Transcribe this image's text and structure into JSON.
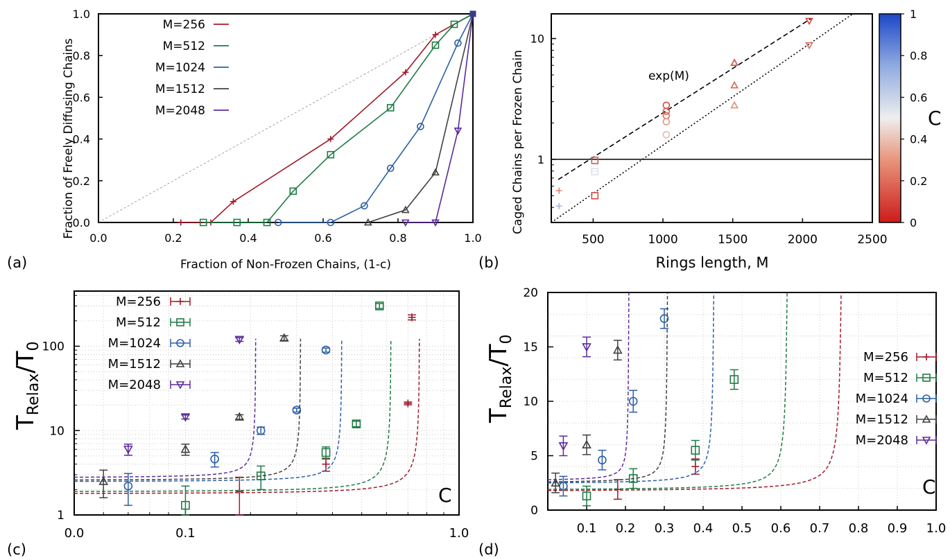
{
  "figure": {
    "panel_labels": [
      "(a)",
      "(b)",
      "(c)",
      "(d)"
    ]
  },
  "colors": {
    "M256": "#a3192a",
    "M512": "#1e7a45",
    "M1024": "#2b5fa6",
    "M1512": "#404040",
    "M2048": "#5b2a9a"
  },
  "chart_data": [
    {
      "id": "a",
      "type": "line",
      "xlabel": "Fraction of Non-Frozen Chains, (1-c)",
      "ylabel": "Fraction of Freely Diffusing Chains",
      "xlim": [
        0,
        1
      ],
      "ylim": [
        0,
        1
      ],
      "xticks": [
        "0.0",
        "0.2",
        "0.4",
        "0.6",
        "0.8",
        "1.0"
      ],
      "yticks": [
        "0.0",
        "0.2",
        "0.4",
        "0.6",
        "0.8",
        "1.0"
      ],
      "grid": false,
      "reference_line": "y = x (thin dashed)",
      "legend_placement": "top-left",
      "series": [
        {
          "name": "M=256",
          "color": "#a3192a",
          "marker": "plus",
          "x": [
            0.22,
            0.3,
            0.36,
            0.62,
            0.82,
            0.9,
            1.0
          ],
          "y": [
            0.0,
            0.0,
            0.1,
            0.4,
            0.72,
            0.9,
            1.0
          ]
        },
        {
          "name": "M=512",
          "color": "#1e7a45",
          "marker": "square",
          "x": [
            0.28,
            0.37,
            0.45,
            0.52,
            0.62,
            0.78,
            0.9,
            0.95,
            1.0
          ],
          "y": [
            0.0,
            0.0,
            0.0,
            0.15,
            0.325,
            0.55,
            0.85,
            0.95,
            1.0
          ]
        },
        {
          "name": "M=1024",
          "color": "#2b5fa6",
          "marker": "circle",
          "x": [
            0.48,
            0.62,
            0.71,
            0.78,
            0.86,
            0.96,
            1.0
          ],
          "y": [
            0.0,
            0.0,
            0.08,
            0.26,
            0.46,
            0.86,
            1.0
          ]
        },
        {
          "name": "M=1512",
          "color": "#404040",
          "marker": "triangle-up",
          "x": [
            0.72,
            0.82,
            0.9,
            1.0
          ],
          "y": [
            0.0,
            0.06,
            0.24,
            1.0
          ]
        },
        {
          "name": "M=2048",
          "color": "#5b2a9a",
          "marker": "triangle-down",
          "x": [
            0.82,
            0.9,
            0.96,
            1.0
          ],
          "y": [
            0.0,
            0.0,
            0.44,
            1.0
          ]
        }
      ]
    },
    {
      "id": "b",
      "type": "scatter",
      "xlabel": "Rings length, M",
      "ylabel": "Caged Chains per Frozen Chain",
      "xlim": [
        200,
        2500
      ],
      "ylim": [
        0.3,
        16
      ],
      "yscale": "log",
      "xticks": [
        "500",
        "1000",
        "1500",
        "2000",
        "2500"
      ],
      "yticks": [
        "1",
        "10"
      ],
      "grid": false,
      "annotation": "exp(M)",
      "colorbar": {
        "label": "C",
        "range": [
          0,
          1
        ],
        "ticks": [
          "0",
          "0.2",
          "0.4",
          "0.6",
          "0.8",
          "1"
        ],
        "colors": [
          "#cc1b1b",
          "#e8957c",
          "#eeeeee",
          "#90abe0",
          "#1d47c8"
        ]
      },
      "hline": 1,
      "fit_lines": [
        {
          "style": "dashed",
          "x": [
            250,
            2060
          ],
          "y": [
            0.68,
            14.6
          ]
        },
        {
          "style": "dotted",
          "x": [
            200,
            2360
          ],
          "y": [
            0.3,
            16
          ]
        }
      ],
      "points": [
        {
          "x": 256,
          "y": 0.55,
          "c": 0.25,
          "marker": "plus"
        },
        {
          "x": 256,
          "y": 0.41,
          "c": 0.7,
          "marker": "plus"
        },
        {
          "x": 512,
          "y": 0.98,
          "c": 0.15,
          "marker": "square"
        },
        {
          "x": 512,
          "y": 0.85,
          "c": 0.5,
          "marker": "square"
        },
        {
          "x": 512,
          "y": 0.79,
          "c": 0.55,
          "marker": "square"
        },
        {
          "x": 512,
          "y": 0.5,
          "c": 0.12,
          "marker": "square"
        },
        {
          "x": 1024,
          "y": 2.8,
          "c": 0.12,
          "marker": "circle"
        },
        {
          "x": 1024,
          "y": 2.5,
          "c": 0.15,
          "marker": "circle"
        },
        {
          "x": 1024,
          "y": 2.3,
          "c": 0.2,
          "marker": "circle"
        },
        {
          "x": 1024,
          "y": 2.05,
          "c": 0.3,
          "marker": "circle"
        },
        {
          "x": 1024,
          "y": 1.6,
          "c": 0.38,
          "marker": "circle"
        },
        {
          "x": 1512,
          "y": 6.3,
          "c": 0.12,
          "marker": "triangle-up"
        },
        {
          "x": 1512,
          "y": 4.1,
          "c": 0.18,
          "marker": "triangle-up"
        },
        {
          "x": 1512,
          "y": 2.8,
          "c": 0.28,
          "marker": "triangle-up"
        },
        {
          "x": 2048,
          "y": 14.0,
          "c": 0.1,
          "marker": "triangle-down"
        },
        {
          "x": 2048,
          "y": 8.8,
          "c": 0.2,
          "marker": "triangle-down"
        }
      ]
    },
    {
      "id": "c",
      "type": "scatter",
      "xlabel": "C",
      "ylabel_main": "T",
      "ylabel_sub": "Relax",
      "ylabel_rest": "/T",
      "ylabel_sub2": "0",
      "xlim": [
        0.0,
        1.0
      ],
      "ylim": [
        1,
        450
      ],
      "yscale": "log",
      "xscale": "log(1-c) style",
      "xticks": [
        "0.0",
        "0.1",
        "1.0"
      ],
      "yticks": [
        "1",
        "10",
        "100"
      ],
      "grid": true,
      "legend_placement": "top-left",
      "series": [
        {
          "name": "M=256",
          "color": "#a3192a",
          "marker": "plus",
          "cstar": 0.76,
          "x": [
            0.18,
            0.38,
            0.7,
            0.72
          ],
          "y": [
            1.9,
            4.0,
            21,
            220
          ],
          "err": [
            0.9,
            0.7,
            0.8,
            15
          ]
        },
        {
          "name": "M=512",
          "color": "#1e7a45",
          "marker": "square",
          "cstar": 0.62,
          "x": [
            0.1,
            0.22,
            0.38,
            0.48,
            0.57
          ],
          "y": [
            1.3,
            2.9,
            5.5,
            12,
            300
          ],
          "err": [
            0.9,
            0.9,
            0.9,
            0.9,
            20
          ]
        },
        {
          "name": "M=1024",
          "color": "#2b5fa6",
          "marker": "circle",
          "cstar": 0.43,
          "x": [
            0.04,
            0.14,
            0.22,
            0.3,
            0.38
          ],
          "y": [
            2.2,
            4.6,
            10,
            17.5,
            90
          ],
          "err": [
            0.9,
            0.9,
            1.0,
            0.9,
            5
          ]
        },
        {
          "name": "M=1512",
          "color": "#404040",
          "marker": "triangle-up",
          "cstar": 0.31,
          "x": [
            0.02,
            0.1,
            0.18,
            0.27
          ],
          "y": [
            2.5,
            6.0,
            14.5,
            125
          ],
          "err": [
            0.9,
            0.9,
            0.9,
            8
          ]
        },
        {
          "name": "M=2048",
          "color": "#5b2a9a",
          "marker": "triangle-down",
          "cstar": 0.21,
          "x": [
            0.04,
            0.1,
            0.18
          ],
          "y": [
            6.0,
            14.5,
            120
          ],
          "err": [
            0.9,
            0.8,
            6
          ]
        }
      ]
    },
    {
      "id": "d",
      "type": "scatter",
      "xlabel": "C",
      "ylabel_main": "T",
      "ylabel_sub": "Relax",
      "ylabel_rest": "/T",
      "ylabel_sub2": "0",
      "xlim": [
        0.0,
        1.0
      ],
      "ylim": [
        0,
        20
      ],
      "xticks": [
        "0.1",
        "0.2",
        "0.3",
        "0.4",
        "0.5",
        "0.6",
        "0.7",
        "0.8",
        "0.9",
        "1.0"
      ],
      "yticks": [
        "0",
        "5",
        "10",
        "15",
        "20"
      ],
      "grid": true,
      "legend_placement": "right",
      "series": [
        {
          "name": "M=256",
          "color": "#a3192a",
          "marker": "plus",
          "cstar": 0.76,
          "x": [
            0.18,
            0.38
          ],
          "y": [
            1.9,
            4.0
          ],
          "err": [
            0.9,
            0.7
          ]
        },
        {
          "name": "M=512",
          "color": "#1e7a45",
          "marker": "square",
          "cstar": 0.62,
          "x": [
            0.1,
            0.22,
            0.38,
            0.48
          ],
          "y": [
            1.3,
            2.9,
            5.5,
            12
          ],
          "err": [
            0.9,
            0.9,
            0.9,
            0.9
          ]
        },
        {
          "name": "M=1024",
          "color": "#2b5fa6",
          "marker": "circle",
          "cstar": 0.43,
          "x": [
            0.04,
            0.14,
            0.22,
            0.3
          ],
          "y": [
            2.2,
            4.6,
            10,
            17.6
          ],
          "err": [
            0.9,
            0.9,
            1.0,
            0.9
          ]
        },
        {
          "name": "M=1512",
          "color": "#404040",
          "marker": "triangle-up",
          "cstar": 0.31,
          "x": [
            0.02,
            0.1,
            0.18
          ],
          "y": [
            2.5,
            6.0,
            14.7
          ],
          "err": [
            0.9,
            0.9,
            0.9
          ]
        },
        {
          "name": "M=2048",
          "color": "#5b2a9a",
          "marker": "triangle-down",
          "cstar": 0.21,
          "x": [
            0.04,
            0.1
          ],
          "y": [
            5.9,
            15.0
          ],
          "err": [
            0.9,
            0.9
          ]
        }
      ]
    }
  ]
}
